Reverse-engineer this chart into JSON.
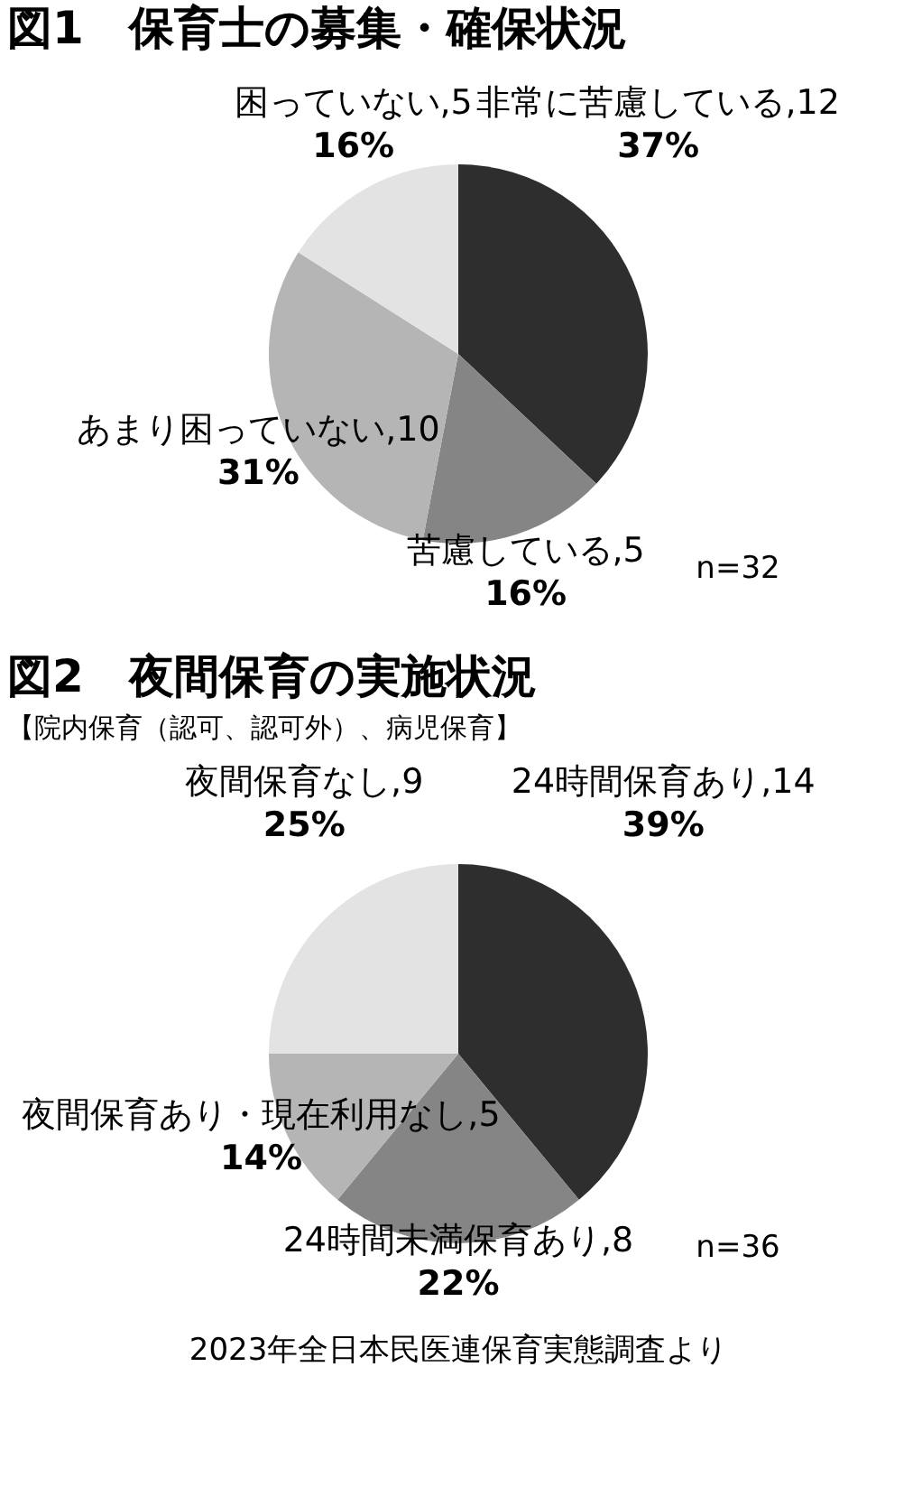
{
  "chart_data": [
    {
      "type": "pie",
      "title": "図1　保育士の募集・確保状況",
      "categories": [
        "非常に苦慮している,12",
        "苦慮している,5",
        "あまり困っていない,10",
        "困っていない,5"
      ],
      "values": [
        37,
        16,
        31,
        16
      ],
      "colors": [
        "#2e2e2e",
        "#858585",
        "#b5b5b5",
        "#e3e3e3"
      ],
      "value_labels": [
        "37%",
        "16%",
        "31%",
        "16%"
      ],
      "annotations": [
        "n=32"
      ]
    },
    {
      "type": "pie",
      "title": "図2　夜間保育の実施状況",
      "subtitle": "【院内保育（認可、認可外）、病児保育】",
      "categories": [
        "24時間保育あり,14",
        "24時間未満保育あり,8",
        "夜間保育あり・現在利用なし,5",
        "夜間保育なし,9"
      ],
      "values": [
        39,
        22,
        14,
        25
      ],
      "colors": [
        "#2e2e2e",
        "#858585",
        "#b5b5b5",
        "#e3e3e3"
      ],
      "value_labels": [
        "39%",
        "22%",
        "14%",
        "25%"
      ],
      "annotations": [
        "n=36",
        "2023年全日本民医連保育実態調査より"
      ]
    }
  ]
}
